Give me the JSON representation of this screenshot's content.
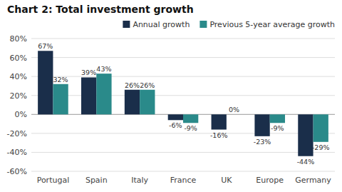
{
  "chart_data": {
    "type": "bar",
    "title": "Chart 2: Total investment growth",
    "categories": [
      "Portugal",
      "Spain",
      "Italy",
      "France",
      "UK",
      "Europe",
      "Germany"
    ],
    "series": [
      {
        "name": "Annual growth",
        "color": "#1a2e4a",
        "values": [
          67,
          39,
          26,
          -6,
          -16,
          -23,
          -44
        ],
        "value_labels": [
          "67%",
          "39%",
          "26%",
          "-6%",
          "-16%",
          "-23%",
          "-44%"
        ]
      },
      {
        "name": "Previous 5-year average growth",
        "color": "#2a8a8a",
        "values": [
          32,
          43,
          26,
          -9,
          0,
          -9,
          -29
        ],
        "value_labels": [
          "32%",
          "43%",
          "26%",
          "-9%",
          "0%",
          "-9%",
          "-29%"
        ]
      }
    ],
    "ylim": [
      -60,
      80
    ],
    "yticks": [
      {
        "value": -60,
        "label": "-60%"
      },
      {
        "value": -40,
        "label": "-40%"
      },
      {
        "value": -20,
        "label": "-20%"
      },
      {
        "value": 0,
        "label": "0%"
      },
      {
        "value": 20,
        "label": "20%"
      },
      {
        "value": 40,
        "label": "40%"
      },
      {
        "value": 60,
        "label": "60%"
      },
      {
        "value": 80,
        "label": "80%"
      }
    ],
    "grid": true,
    "legend": "upper right",
    "data_labels": true
  }
}
